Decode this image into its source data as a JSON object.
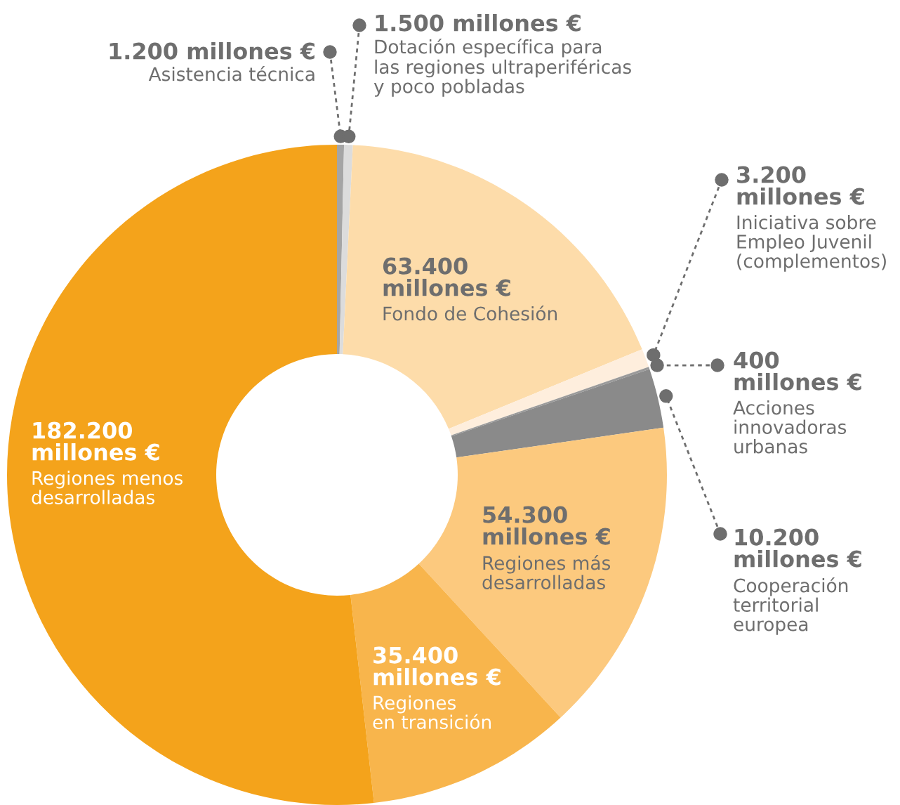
{
  "chart_data": {
    "type": "donut",
    "categories": [
      "Asistencia técnica",
      "Dotación específica para\nlas regiones ultraperiféricas\ny poco pobladas",
      "Fondo de Cohesión",
      "Iniciativa sobre\nEmpleo Juvenil\n(complementos)",
      "Acciones\ninnovadoras\nurbanas",
      "Cooperación\nterritorial\neuropea",
      "Regiones más\ndesarrolladas",
      "Regiones\nen transición",
      "Regiones menos\ndesarrolladas"
    ],
    "values": [
      1200,
      1500,
      63400,
      3200,
      400,
      10200,
      54300,
      35400,
      182200
    ],
    "colors": [
      "#a5a5a5",
      "#dcdcdc",
      "#fddcaa",
      "#feeedd",
      "#9a9a9a",
      "#8a8a8a",
      "#fcc97e",
      "#f8b54c",
      "#f4a31b"
    ],
    "value_labels": [
      "1.200 millones €",
      "1.500 millones €",
      "63.400\nmillones €",
      "3.200\nmillones €",
      "400\nmillones €",
      "10.200\nmillones €",
      "54.300\nmillones €",
      "35.400\nmillones €",
      "182.200\nmillones €"
    ]
  }
}
